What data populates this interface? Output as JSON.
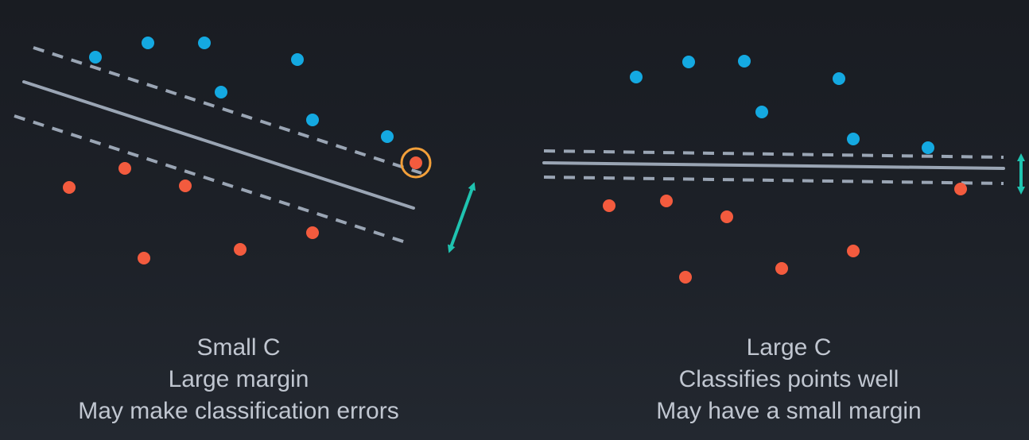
{
  "colors": {
    "background": "#1b1f26",
    "class_a_point": "#14a9e1",
    "class_b_point": "#f35b3e",
    "boundary_line": "#9aa5b4",
    "margin_arrow": "#1fc3b0",
    "highlight_ring": "#f3a03a",
    "caption_text": "#c0c6d0"
  },
  "panels": [
    {
      "id": "small-c",
      "caption": [
        "Small C",
        "Large margin",
        "May make classification errors"
      ],
      "blue_points": [
        [
          120,
          72
        ],
        [
          186,
          54
        ],
        [
          257,
          54
        ],
        [
          374,
          75
        ],
        [
          278,
          116
        ],
        [
          393,
          151
        ],
        [
          487,
          172
        ]
      ],
      "red_points": [
        [
          87,
          236
        ],
        [
          157,
          212
        ],
        [
          233,
          234
        ],
        [
          181,
          325
        ],
        [
          302,
          314
        ],
        [
          393,
          293
        ],
        [
          523,
          205
        ]
      ],
      "decision_line": [
        [
          30,
          103
        ],
        [
          520,
          262
        ]
      ],
      "margin_lines": [
        [
          [
            42,
            60
          ],
          [
            530,
            218
          ]
        ],
        [
          [
            18,
            146
          ],
          [
            510,
            305
          ]
        ]
      ],
      "highlighted_point": [
        523,
        205
      ],
      "margin_arrow": [
        [
          595,
          234
        ],
        [
          566,
          314
        ]
      ]
    },
    {
      "id": "large-c",
      "caption": [
        "Large C",
        "Classifies points well",
        "May have a small margin"
      ],
      "blue_points": [
        [
          800,
          97
        ],
        [
          866,
          78
        ],
        [
          936,
          77
        ],
        [
          1055,
          99
        ],
        [
          958,
          141
        ],
        [
          1073,
          175
        ],
        [
          1167,
          186
        ]
      ],
      "red_points": [
        [
          766,
          259
        ],
        [
          838,
          253
        ],
        [
          914,
          273
        ],
        [
          862,
          349
        ],
        [
          983,
          338
        ],
        [
          1073,
          316
        ],
        [
          1208,
          238
        ]
      ],
      "decision_line": [
        [
          684,
          205
        ],
        [
          1262,
          212
        ]
      ],
      "margin_lines": [
        [
          [
            684,
            190
          ],
          [
            1262,
            198
          ]
        ],
        [
          [
            684,
            223
          ],
          [
            1262,
            231
          ]
        ]
      ],
      "highlighted_point": null,
      "margin_arrow": [
        [
          1284,
          198
        ],
        [
          1284,
          240
        ]
      ]
    }
  ]
}
